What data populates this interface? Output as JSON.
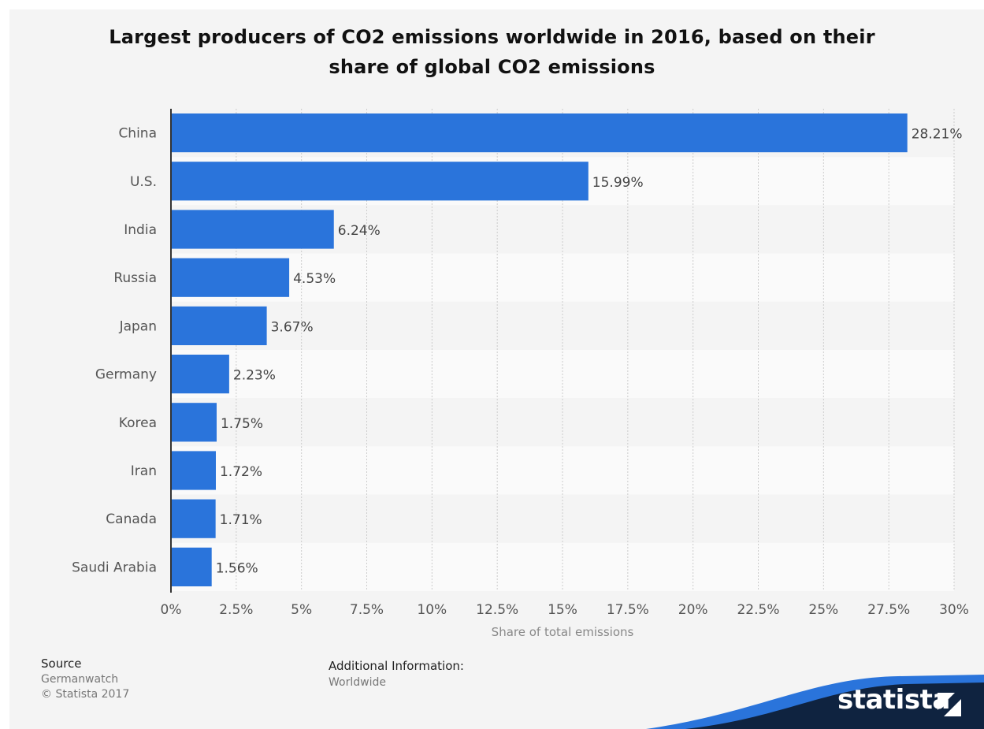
{
  "chart_data": {
    "type": "bar",
    "orientation": "horizontal",
    "title": "Largest producers of CO2 emissions worldwide in 2016, based on their share of global CO2 emissions",
    "title_lines": [
      "Largest producers of CO2 emissions worldwide in 2016, based on their",
      "share of global CO2 emissions"
    ],
    "categories": [
      "China",
      "U.S.",
      "India",
      "Russia",
      "Japan",
      "Germany",
      "Korea",
      "Iran",
      "Canada",
      "Saudi Arabia"
    ],
    "values": [
      28.21,
      15.99,
      6.24,
      4.53,
      3.67,
      2.23,
      1.75,
      1.72,
      1.71,
      1.56
    ],
    "value_labels": [
      "28.21%",
      "15.99%",
      "6.24%",
      "4.53%",
      "3.67%",
      "2.23%",
      "1.75%",
      "1.72%",
      "1.71%",
      "1.56%"
    ],
    "xlabel": "Share of total emissions",
    "ylabel": "",
    "xlim": [
      0,
      30
    ],
    "x_ticks": [
      0,
      2.5,
      5,
      7.5,
      10,
      12.5,
      15,
      17.5,
      20,
      22.5,
      25,
      27.5,
      30
    ],
    "x_tick_labels": [
      "0%",
      "2.5%",
      "5%",
      "7.5%",
      "10%",
      "12.5%",
      "15%",
      "17.5%",
      "20%",
      "22.5%",
      "25%",
      "27.5%",
      "30%"
    ],
    "grid": true,
    "bar_color": "#2a74db"
  },
  "footer": {
    "source_label": "Source",
    "source_lines": [
      "Germanwatch",
      "© Statista 2017"
    ],
    "additional_label": "Additional Information:",
    "additional_lines": [
      "Worldwide"
    ]
  },
  "brand": {
    "logo": "statista",
    "logo_icon": "statista-s-icon",
    "wave_dark": "#0f2340",
    "wave_blue": "#2a74db"
  }
}
